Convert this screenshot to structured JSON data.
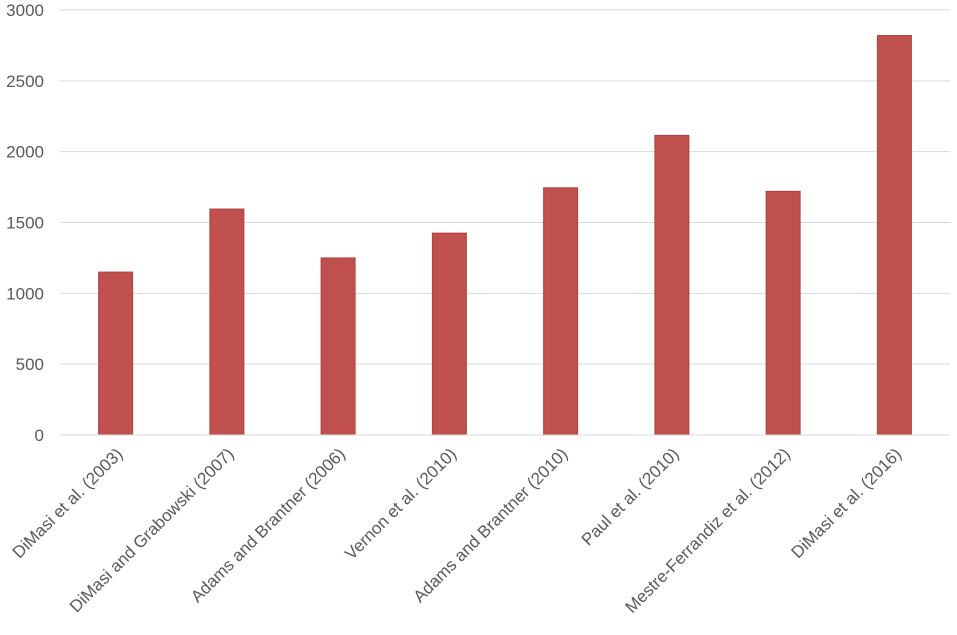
{
  "chart_data": {
    "type": "bar",
    "categories": [
      "DiMasi et al. (2003)",
      "DiMasi and Grabowski (2007)",
      "Adams and Brantner (2006)",
      "Vernon et al. (2010)",
      "Adams and Brantner (2010)",
      "Paul et al. (2010)",
      "Mestre-Ferrandiz et al. (2012)",
      "DiMasi et al. (2016)"
    ],
    "values": [
      1150,
      1595,
      1250,
      1425,
      1745,
      2115,
      1720,
      2820
    ],
    "y_ticks": [
      "0",
      "500",
      "1000",
      "1500",
      "2000",
      "2500",
      "3000"
    ],
    "ylim": [
      0,
      3000
    ],
    "grid": true,
    "bar_color": "#C0504D",
    "grid_color": "#D9D9D9"
  }
}
